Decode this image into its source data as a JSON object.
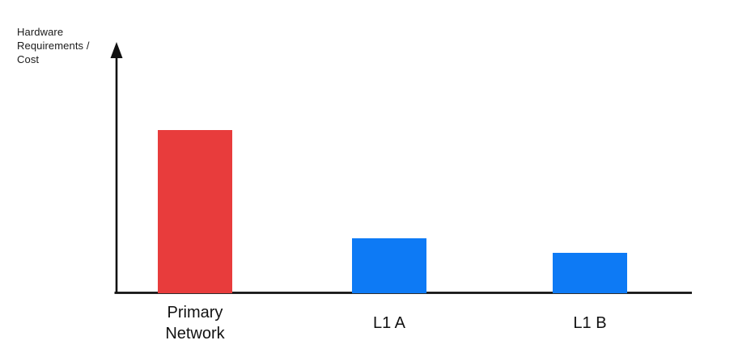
{
  "page": {
    "background": "#ffffff"
  },
  "chart_data": {
    "type": "bar",
    "title": "",
    "xlabel": "",
    "ylabel": "Hardware Requirements / Cost",
    "ylabel_display": "Hardware\nRequirements /\nCost",
    "categories": [
      "Primary Network",
      "L1 A",
      "L1 B"
    ],
    "category_display": [
      "Primary\nNetwork",
      "L1 A",
      "L1 B"
    ],
    "values": [
      65,
      22,
      16
    ],
    "value_unit": "relative bar height as % of y-axis length (no numeric scale shown)",
    "series_colors": [
      "#e83c3c",
      "#0d7af5",
      "#0d7af5"
    ],
    "axis_color": "#111111",
    "grid": false,
    "legend": false,
    "ticks": "none",
    "y_axis_arrow": true
  }
}
